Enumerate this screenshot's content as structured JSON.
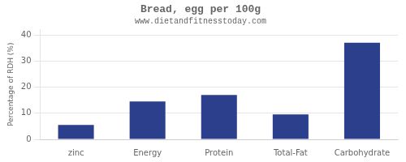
{
  "chart_data": {
    "type": "bar",
    "title": "Bread, egg per 100g",
    "subtitle": "www.dietandfitnesstoday.com",
    "categories": [
      "zinc",
      "Energy",
      "Protein",
      "Total-Fat",
      "Carbohydrate"
    ],
    "values": [
      5.5,
      14.5,
      17.0,
      9.5,
      37.0
    ],
    "color": "#2b3f8c",
    "ylabel": "Percentage of RDH (%)",
    "ylim": [
      0,
      42
    ],
    "yticks": [
      0,
      10,
      20,
      30,
      40
    ],
    "grid": true
  }
}
